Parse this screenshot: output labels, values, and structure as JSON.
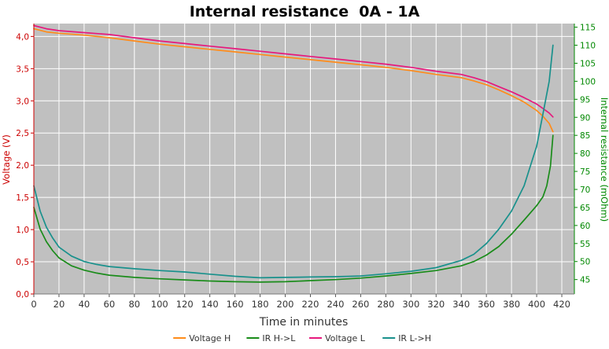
{
  "chart_data": {
    "type": "line",
    "title": "Internal resistance  0A - 1A",
    "xlabel": "Time in minutes",
    "ylabel_left": "Voltage (V)",
    "ylabel_right": "Internal resistance (mOhm)",
    "xlim": [
      0,
      430
    ],
    "ylim_left": [
      0.0,
      4.2
    ],
    "ylim_right": [
      41,
      116
    ],
    "x_ticks": [
      0,
      20,
      40,
      60,
      80,
      100,
      120,
      140,
      160,
      180,
      200,
      220,
      240,
      260,
      280,
      300,
      320,
      340,
      360,
      380,
      400,
      420
    ],
    "y_ticks_left": [
      "0,0",
      "0,5",
      "1,0",
      "1,5",
      "2,0",
      "2,5",
      "3,0",
      "3,5",
      "4,0"
    ],
    "y_tick_values_left": [
      0,
      0.5,
      1.0,
      1.5,
      2.0,
      2.5,
      3.0,
      3.5,
      4.0
    ],
    "y_ticks_right": [
      45,
      50,
      55,
      60,
      65,
      70,
      75,
      80,
      85,
      90,
      95,
      100,
      105,
      110,
      115
    ],
    "grid": true,
    "legend_position": "bottom",
    "colors": {
      "plot_background": "#c0c0c0",
      "grid": "#ffffff",
      "left_axis": "#cc0000",
      "right_axis": "#008800",
      "title": "#000000"
    },
    "series": [
      {
        "name": "Voltage H",
        "axis": "left",
        "color": "#ff8c1a",
        "x": [
          0,
          10,
          20,
          40,
          60,
          80,
          100,
          120,
          140,
          160,
          180,
          200,
          220,
          240,
          260,
          280,
          300,
          320,
          340,
          350,
          360,
          370,
          380,
          390,
          400,
          405,
          410,
          413
        ],
        "y": [
          4.12,
          4.07,
          4.05,
          4.02,
          3.98,
          3.93,
          3.88,
          3.84,
          3.8,
          3.76,
          3.72,
          3.68,
          3.64,
          3.6,
          3.56,
          3.52,
          3.47,
          3.41,
          3.36,
          3.31,
          3.25,
          3.17,
          3.08,
          2.98,
          2.85,
          2.76,
          2.65,
          2.52
        ]
      },
      {
        "name": "IR H->L",
        "axis": "right",
        "color": "#1a8c1a",
        "x": [
          0,
          5,
          10,
          15,
          20,
          30,
          40,
          50,
          60,
          80,
          100,
          120,
          140,
          160,
          180,
          200,
          220,
          240,
          260,
          280,
          300,
          320,
          340,
          350,
          360,
          370,
          380,
          390,
          400,
          405,
          408,
          411,
          413
        ],
        "y": [
          65.0,
          59.0,
          55.5,
          53.0,
          51.0,
          48.8,
          47.6,
          46.8,
          46.2,
          45.6,
          45.2,
          44.9,
          44.6,
          44.4,
          44.3,
          44.4,
          44.7,
          45.0,
          45.4,
          46.0,
          46.7,
          47.5,
          48.8,
          50.0,
          51.8,
          54.2,
          57.6,
          61.5,
          65.5,
          68.0,
          71.0,
          76.5,
          85.0
        ]
      },
      {
        "name": "Voltage L",
        "axis": "left",
        "color": "#e6197d",
        "x": [
          0,
          10,
          20,
          40,
          60,
          80,
          100,
          120,
          140,
          160,
          180,
          200,
          220,
          240,
          260,
          280,
          300,
          320,
          340,
          350,
          360,
          370,
          380,
          390,
          400,
          405,
          410,
          413
        ],
        "y": [
          4.17,
          4.12,
          4.09,
          4.06,
          4.03,
          3.98,
          3.93,
          3.89,
          3.85,
          3.81,
          3.77,
          3.73,
          3.69,
          3.65,
          3.61,
          3.57,
          3.52,
          3.46,
          3.41,
          3.36,
          3.3,
          3.22,
          3.14,
          3.05,
          2.95,
          2.88,
          2.81,
          2.75
        ]
      },
      {
        "name": "IR L->H",
        "axis": "right",
        "color": "#19918c",
        "x": [
          0,
          5,
          10,
          15,
          20,
          30,
          40,
          50,
          60,
          80,
          100,
          120,
          140,
          160,
          180,
          200,
          220,
          240,
          260,
          280,
          300,
          320,
          340,
          350,
          360,
          370,
          380,
          390,
          400,
          405,
          410,
          413
        ],
        "y": [
          71.0,
          64.0,
          59.5,
          56.5,
          54.0,
          51.5,
          50.0,
          49.2,
          48.6,
          48.0,
          47.5,
          47.1,
          46.5,
          45.9,
          45.5,
          45.6,
          45.7,
          45.8,
          46.0,
          46.6,
          47.3,
          48.3,
          50.3,
          52.0,
          55.0,
          59.0,
          64.0,
          71.0,
          82.0,
          91.0,
          100.0,
          110.0
        ]
      }
    ]
  }
}
